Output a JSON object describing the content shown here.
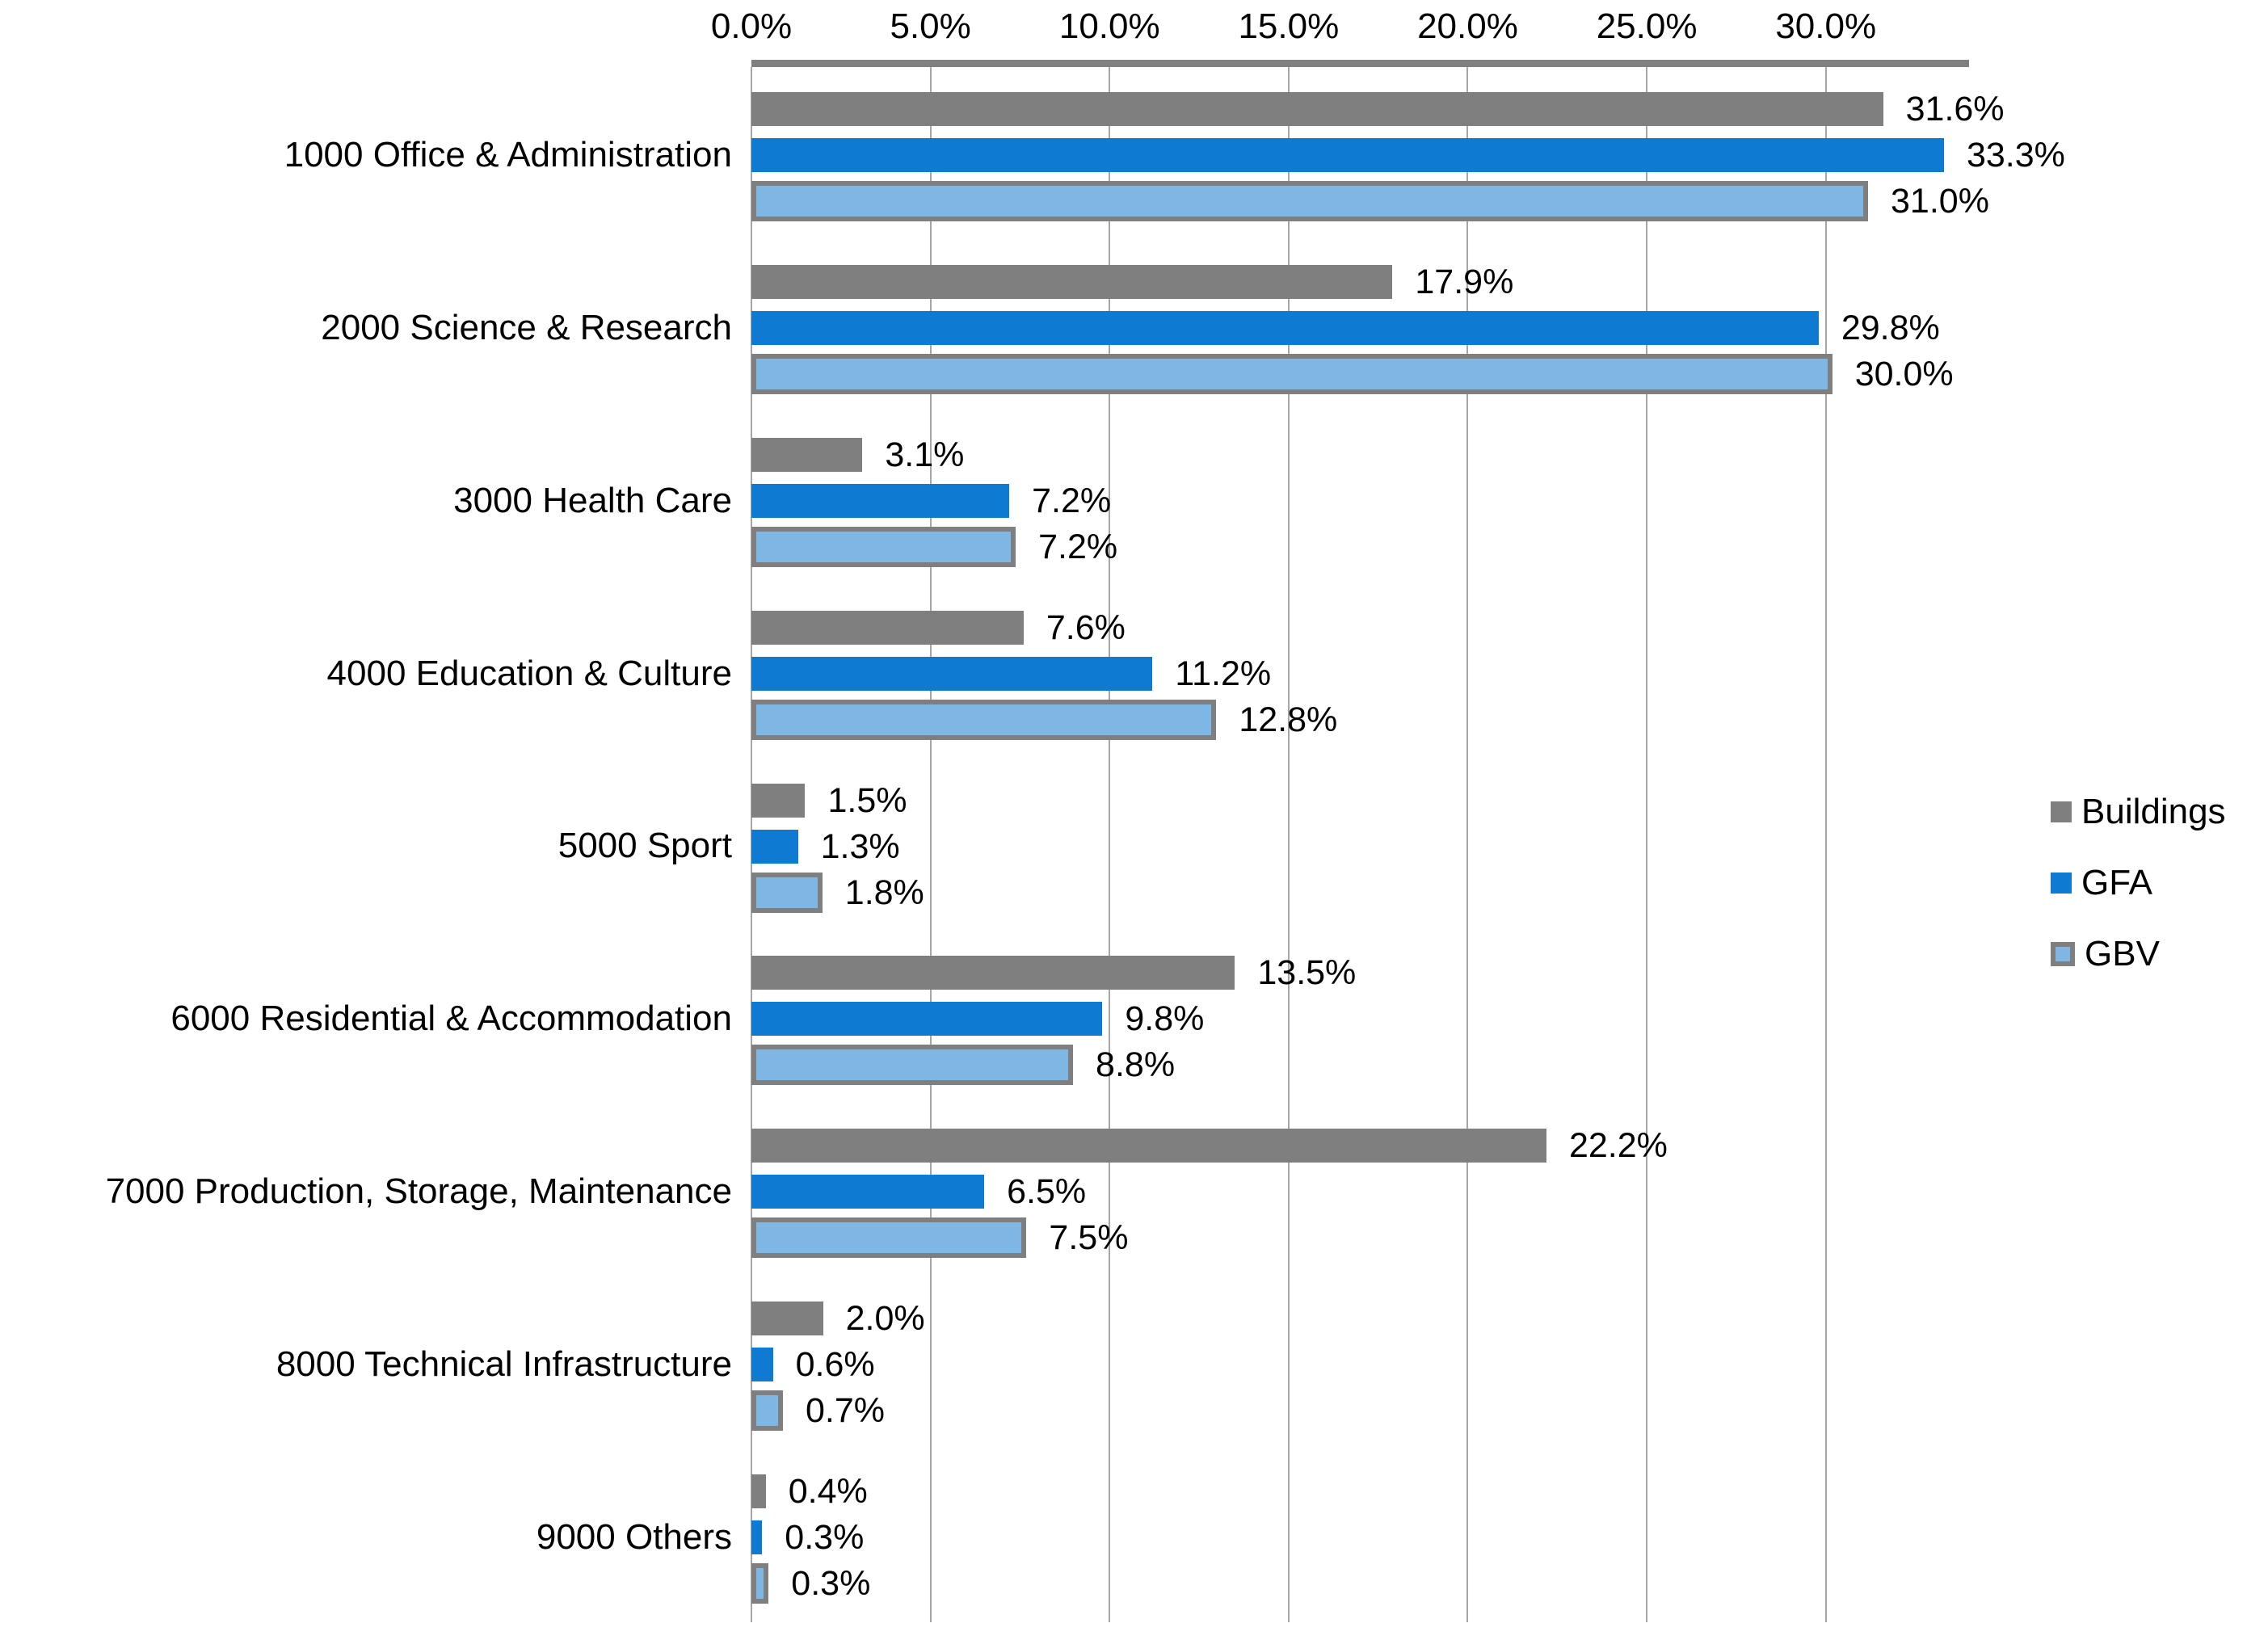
{
  "chart_data": {
    "type": "bar",
    "orientation": "horizontal",
    "title": "",
    "categories": [
      "1000 Office & Administration",
      "2000 Science & Research",
      "3000 Health Care",
      "4000 Education & Culture",
      "5000 Sport",
      "6000 Residential & Accommodation",
      "7000 Production, Storage, Maintenance",
      "8000 Technical Infrastructure",
      "9000 Others"
    ],
    "series": [
      {
        "name": "Buildings",
        "color": "#7F7F7F",
        "values": [
          31.6,
          17.9,
          3.1,
          7.6,
          1.5,
          13.5,
          22.2,
          2.0,
          0.4
        ],
        "labels": [
          "31.6%",
          "17.9%",
          "3.1%",
          "7.6%",
          "1.5%",
          "13.5%",
          "22.2%",
          "2.0%",
          "0.4%"
        ]
      },
      {
        "name": "GFA",
        "color": "#0E7AD2",
        "values": [
          33.3,
          29.8,
          7.2,
          11.2,
          1.3,
          9.8,
          6.5,
          0.6,
          0.3
        ],
        "labels": [
          "33.3%",
          "29.8%",
          "7.2%",
          "11.2%",
          "1.3%",
          "9.8%",
          "6.5%",
          "0.6%",
          "0.3%"
        ]
      },
      {
        "name": "GBV",
        "color": "#7FB7E4",
        "border_color": "#7F7F7F",
        "values": [
          31.0,
          30.0,
          7.2,
          12.8,
          1.8,
          8.8,
          7.5,
          0.7,
          0.3
        ],
        "labels": [
          "31.0%",
          "30.0%",
          "7.2%",
          "12.8%",
          "1.8%",
          "8.8%",
          "7.5%",
          "0.7%",
          "0.3%"
        ]
      }
    ],
    "x_axis": {
      "position": "top",
      "min": 0,
      "max": 34,
      "tick_interval": 5,
      "ticks": [
        0,
        5,
        10,
        15,
        20,
        25,
        30
      ],
      "tick_labels": [
        "0.0%",
        "5.0%",
        "10.0%",
        "15.0%",
        "20.0%",
        "25.0%",
        "30.0%"
      ]
    },
    "legend": {
      "position": "right",
      "entries": [
        "Buildings",
        "GFA",
        "GBV"
      ]
    },
    "grid": {
      "vertical": true,
      "color": "#A6A6A6"
    },
    "axis_line_color": "#808080",
    "background": "#FFFFFF",
    "text_color": "#000000"
  }
}
